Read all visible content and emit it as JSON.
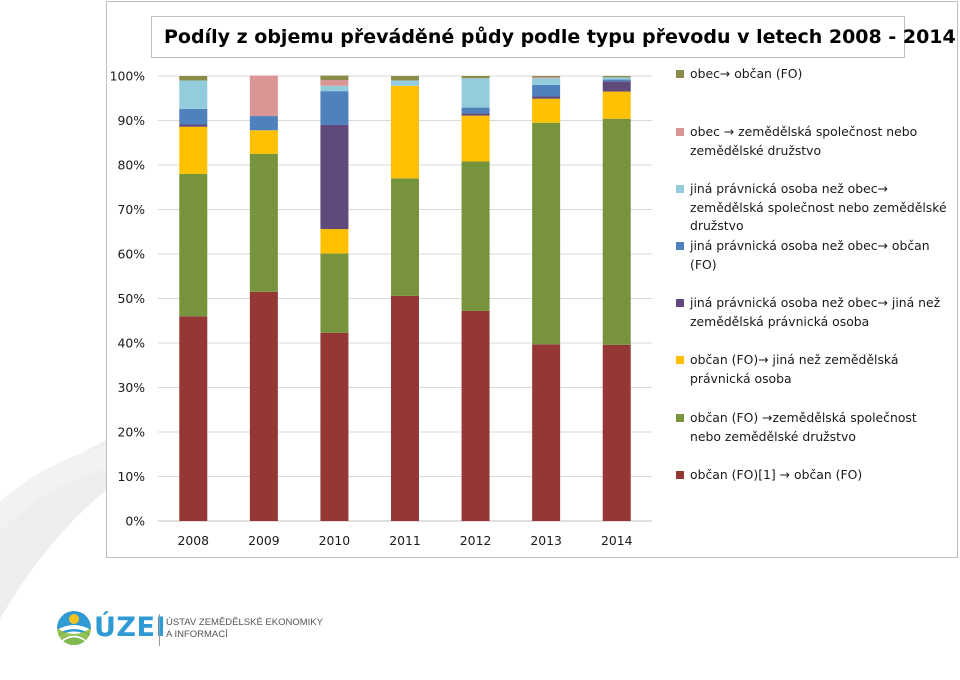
{
  "colors": {
    "obcan_obcan": "#953735",
    "obcan_zemedelska": "#77933c",
    "obcan_jina": "#ffc000",
    "jina_jina": "#604a7b",
    "jina_obcan": "#4f81bd",
    "jina_zemedelska": "#93cddd",
    "obec_zemedelska": "#d99694",
    "obec_obcan": "#8b8b4a"
  },
  "chart_data": {
    "type": "bar",
    "stacked": true,
    "title": "Podíly z objemu převáděné půdy podle typu převodu v letech 2008 - 2014",
    "xlabel": "",
    "ylabel": "",
    "ylim": [
      0,
      100
    ],
    "y_tick_labels": [
      "0%",
      "10%",
      "20%",
      "30%",
      "40%",
      "50%",
      "60%",
      "70%",
      "80%",
      "90%",
      "100%"
    ],
    "grid": true,
    "legend_position": "right",
    "categories": [
      "2008",
      "2009",
      "2010",
      "2011",
      "2012",
      "2013",
      "2014"
    ],
    "series": [
      {
        "key": "obcan_obcan",
        "name": "občan (FO)[1] → občan (FO)",
        "values": [
          46,
          51.5,
          42.3,
          50.6,
          47.2,
          39.7,
          39.6
        ]
      },
      {
        "key": "obcan_zemedelska",
        "name": "občan (FO) →zemědělská společnost nebo zemědělské družstvo",
        "values": [
          32,
          31,
          17.8,
          26.4,
          33.6,
          49.8,
          50.8
        ]
      },
      {
        "key": "obcan_jina",
        "name": "občan (FO)→ jiná než zemědělská právnická osoba",
        "values": [
          10.6,
          5.3,
          5.5,
          20.8,
          10.3,
          5.4,
          6.1
        ]
      },
      {
        "key": "jina_jina",
        "name": "jiná právnická osoba než obec→ jiná než zemědělská právnická osoba",
        "values": [
          0.5,
          0,
          23.4,
          0,
          0.5,
          0.5,
          2.3
        ]
      },
      {
        "key": "jina_obcan",
        "name": "jiná právnická osoba než obec→ občan (FO)",
        "values": [
          3.5,
          3.2,
          7.6,
          0,
          1.3,
          2.6,
          0.4
        ]
      },
      {
        "key": "jina_zemedelska",
        "name": "jiná právnická osoba než obec→ zemědělská společnost nebo zemědělské družstvo",
        "values": [
          6.4,
          0,
          1.2,
          1.2,
          6.6,
          1.5,
          0.5
        ]
      },
      {
        "key": "obec_zemedelska",
        "name": "obec → zemědělská společnost nebo zemědělské družstvo",
        "values": [
          0,
          9.1,
          1.3,
          0,
          0,
          0.2,
          0
        ]
      },
      {
        "key": "obec_obcan",
        "name": "obec→ občan (FO)",
        "values": [
          1,
          0,
          1,
          1,
          0.5,
          0.3,
          0.3
        ]
      }
    ]
  },
  "legend": [
    {
      "key": "obec_obcan",
      "label": "obec→ občan (FO)"
    },
    {
      "key": "obec_zemedelska",
      "label": "obec → zemědělská společnost nebo zemědělské družstvo"
    },
    {
      "key": "jina_zemedelska",
      "label": "jiná právnická osoba než obec→ zemědělská společnost nebo zemědělské družstvo"
    },
    {
      "key": "jina_obcan",
      "label": "jiná právnická osoba než obec→ občan (FO)"
    },
    {
      "key": "jina_jina",
      "label": "jiná právnická osoba než obec→ jiná než zemědělská právnická osoba"
    },
    {
      "key": "obcan_jina",
      "label": "občan (FO)→ jiná než zemědělská právnická osoba"
    },
    {
      "key": "obcan_zemedelska",
      "label": "občan (FO) →zemědělská společnost nebo zemědělské družstvo"
    },
    {
      "key": "obcan_obcan",
      "label": "občan (FO)[1] → občan (FO)"
    }
  ],
  "logo": {
    "word": "ÚZEI",
    "subtitle_line1": "ÚSTAV ZEMĚDĚLSKÉ EKONOMIKY",
    "subtitle_line2": "A INFORMACÍ",
    "icon": "uzei-globe-logo"
  }
}
